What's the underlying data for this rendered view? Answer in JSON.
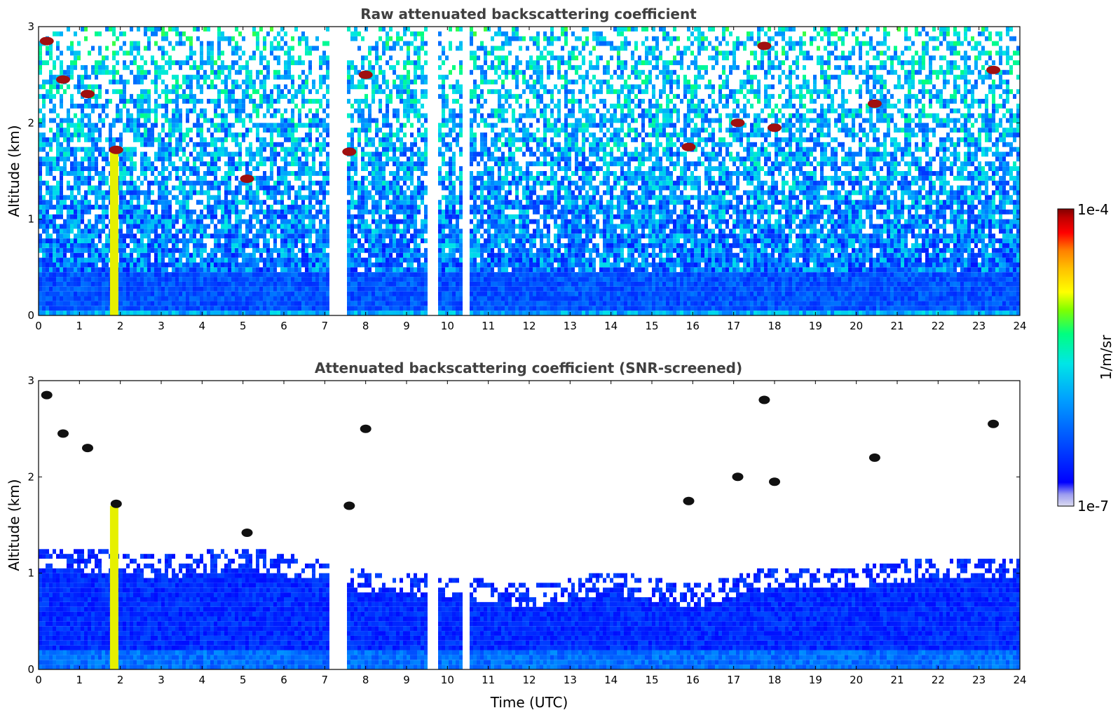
{
  "chart_data": [
    {
      "type": "heatmap",
      "title": "Raw attenuated backscattering coefficient",
      "xlabel": "",
      "ylabel": "Altitude (km)",
      "xlim": [
        0,
        24
      ],
      "ylim": [
        0,
        3
      ],
      "xticks": [
        "0",
        "1",
        "2",
        "3",
        "4",
        "5",
        "6",
        "7",
        "8",
        "9",
        "10",
        "11",
        "12",
        "13",
        "14",
        "15",
        "16",
        "17",
        "18",
        "19",
        "20",
        "21",
        "22",
        "23",
        "24"
      ],
      "yticks": [
        "0",
        "1",
        "2",
        "3"
      ],
      "data_gaps_hours": [
        [
          7.08,
          7.58
        ],
        [
          9.5,
          9.65
        ],
        [
          9.72,
          9.8
        ],
        [
          10.35,
          10.42
        ],
        [
          10.48,
          10.52
        ]
      ],
      "boundary_layer_top_km": 0.45,
      "plumes": [
        {
          "x_hours": 1.85,
          "base_km": 0.0,
          "top_km": 1.7,
          "level": "high"
        }
      ],
      "cloud_features": [
        {
          "x_hours": 0.2,
          "y_km": 2.85,
          "level": "max"
        },
        {
          "x_hours": 0.6,
          "y_km": 2.45,
          "level": "max"
        },
        {
          "x_hours": 1.2,
          "y_km": 2.3,
          "level": "max"
        },
        {
          "x_hours": 1.9,
          "y_km": 1.72,
          "level": "max"
        },
        {
          "x_hours": 5.1,
          "y_km": 1.42,
          "level": "max"
        },
        {
          "x_hours": 7.6,
          "y_km": 1.7,
          "level": "max"
        },
        {
          "x_hours": 8.0,
          "y_km": 2.5,
          "level": "max"
        },
        {
          "x_hours": 15.9,
          "y_km": 1.75,
          "level": "max"
        },
        {
          "x_hours": 17.1,
          "y_km": 2.0,
          "level": "max"
        },
        {
          "x_hours": 17.75,
          "y_km": 2.8,
          "level": "max"
        },
        {
          "x_hours": 18.0,
          "y_km": 1.95,
          "level": "max"
        },
        {
          "x_hours": 20.45,
          "y_km": 2.2,
          "level": "max"
        },
        {
          "x_hours": 23.35,
          "y_km": 2.55,
          "level": "max"
        }
      ]
    },
    {
      "type": "heatmap",
      "title": "Attenuated backscattering coefficient (SNR-screened)",
      "xlabel": "Time (UTC)",
      "ylabel": "Altitude (km)",
      "xlim": [
        0,
        24
      ],
      "ylim": [
        0,
        3
      ],
      "xticks": [
        "0",
        "1",
        "2",
        "3",
        "4",
        "5",
        "6",
        "7",
        "8",
        "9",
        "10",
        "11",
        "12",
        "13",
        "14",
        "15",
        "16",
        "17",
        "18",
        "19",
        "20",
        "21",
        "22",
        "23",
        "24"
      ],
      "yticks": [
        "0",
        "1",
        "2",
        "3"
      ],
      "screened_signal_top_km_profile": [
        [
          0,
          1.15
        ],
        [
          2,
          1.1
        ],
        [
          3,
          1.05
        ],
        [
          5,
          1.15
        ],
        [
          7,
          1.0
        ],
        [
          8,
          0.9
        ],
        [
          10,
          0.85
        ],
        [
          12,
          0.75
        ],
        [
          14,
          0.9
        ],
        [
          16,
          0.75
        ],
        [
          18,
          0.95
        ],
        [
          20,
          0.95
        ],
        [
          22,
          1.05
        ],
        [
          24,
          1.05
        ]
      ]
    }
  ],
  "colorbar": {
    "label": "1/m/sr",
    "max_label": "1e-4",
    "min_label": "1e-7",
    "colors": [
      "#dcdcf0",
      "#b4b4f0",
      "#8c8cf0",
      "#0000ff",
      "#0050ff",
      "#00a0ff",
      "#00e6e6",
      "#00ff80",
      "#80ff00",
      "#ffff00",
      "#ffc000",
      "#ff8000",
      "#ff0000",
      "#c00000",
      "#800000"
    ]
  }
}
